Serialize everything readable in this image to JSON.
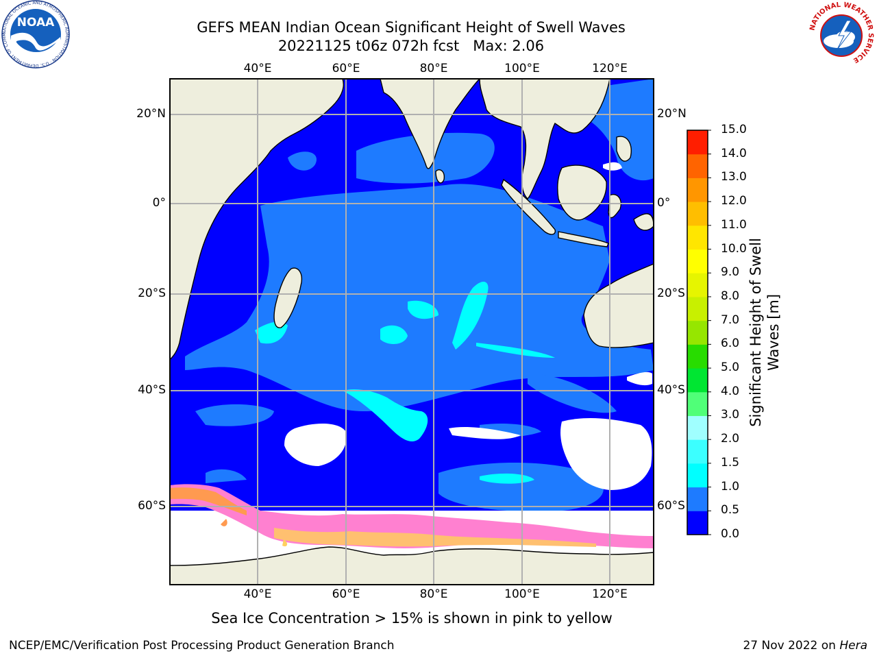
{
  "title": {
    "line1": "GEFS MEAN Indian Ocean Significant Height of Swell Waves",
    "line2": "20221125 t06z 072h fcst   Max: 2.06"
  },
  "logos": {
    "noaa_text": "NOAA",
    "noaa_ring": "NATIONAL OCEANIC AND ATMOSPHERIC ADMINISTRATION · U.S. DEPARTMENT OF COMMERCE ·",
    "nws_ring": "NATIONAL WEATHER SERVICE"
  },
  "map": {
    "lon_labels": [
      "40°E",
      "60°E",
      "80°E",
      "100°E",
      "120°E"
    ],
    "lat_labels": [
      "20°N",
      "0°",
      "20°S",
      "40°S",
      "60°S"
    ]
  },
  "colorbar": {
    "label_line1": "Significant Height of Swell",
    "label_line2": "Waves [m]",
    "levels": [
      "0.0",
      "0.5",
      "1.0",
      "1.5",
      "2.0",
      "3.0",
      "4.0",
      "5.0",
      "6.0",
      "7.0",
      "8.0",
      "9.0",
      "10.0",
      "11.0",
      "12.0",
      "13.0",
      "14.0",
      "15.0"
    ],
    "colors": [
      "#0000ff",
      "#1e7bff",
      "#00ffff",
      "#3cffff",
      "#a0ffff",
      "#50ff78",
      "#00e632",
      "#28dc00",
      "#96e600",
      "#c8f000",
      "#e6f500",
      "#ffff00",
      "#ffe600",
      "#ffbe00",
      "#ff9600",
      "#ff6400",
      "#ff1e00"
    ]
  },
  "subtitle": "Sea Ice Concentration > 15% is shown in pink to yellow",
  "footer": {
    "left": "NCEP/EMC/Verification Post Processing Product Generation Branch",
    "right_date": "27 Nov 2022 on ",
    "right_machine": "Hera"
  }
}
